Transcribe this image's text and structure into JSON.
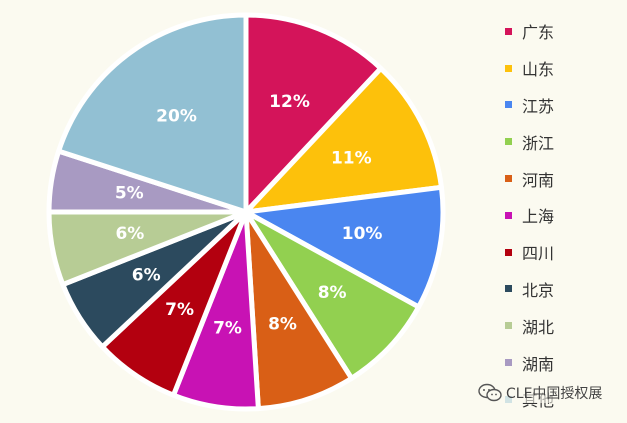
{
  "chart_data": {
    "type": "pie",
    "slices": [
      {
        "label": "广东",
        "value": 12,
        "display": "12%",
        "color": "#d4145a"
      },
      {
        "label": "山东",
        "value": 11,
        "display": "11%",
        "color": "#fdc10b"
      },
      {
        "label": "江苏",
        "value": 10,
        "display": "10%",
        "color": "#4a86f0"
      },
      {
        "label": "浙江",
        "value": 8,
        "display": "8%",
        "color": "#92d050"
      },
      {
        "label": "河南",
        "value": 8,
        "display": "8%",
        "color": "#d95f16"
      },
      {
        "label": "上海",
        "value": 7,
        "display": "7%",
        "color": "#c812b4"
      },
      {
        "label": "四川",
        "value": 7,
        "display": "7%",
        "color": "#b3000f"
      },
      {
        "label": "北京",
        "value": 6,
        "display": "6%",
        "color": "#2c4a5e"
      },
      {
        "label": "湖北",
        "value": 6,
        "display": "6%",
        "color": "#b7cc95"
      },
      {
        "label": "湖南",
        "value": 5,
        "display": "5%",
        "color": "#a89ac2"
      },
      {
        "label": "其他",
        "value": 20,
        "display": "20%",
        "color": "#92c0d3"
      }
    ],
    "legend_position": "right"
  },
  "watermark": {
    "text": "CLE中国授权展",
    "icon": "wechat-icon"
  }
}
